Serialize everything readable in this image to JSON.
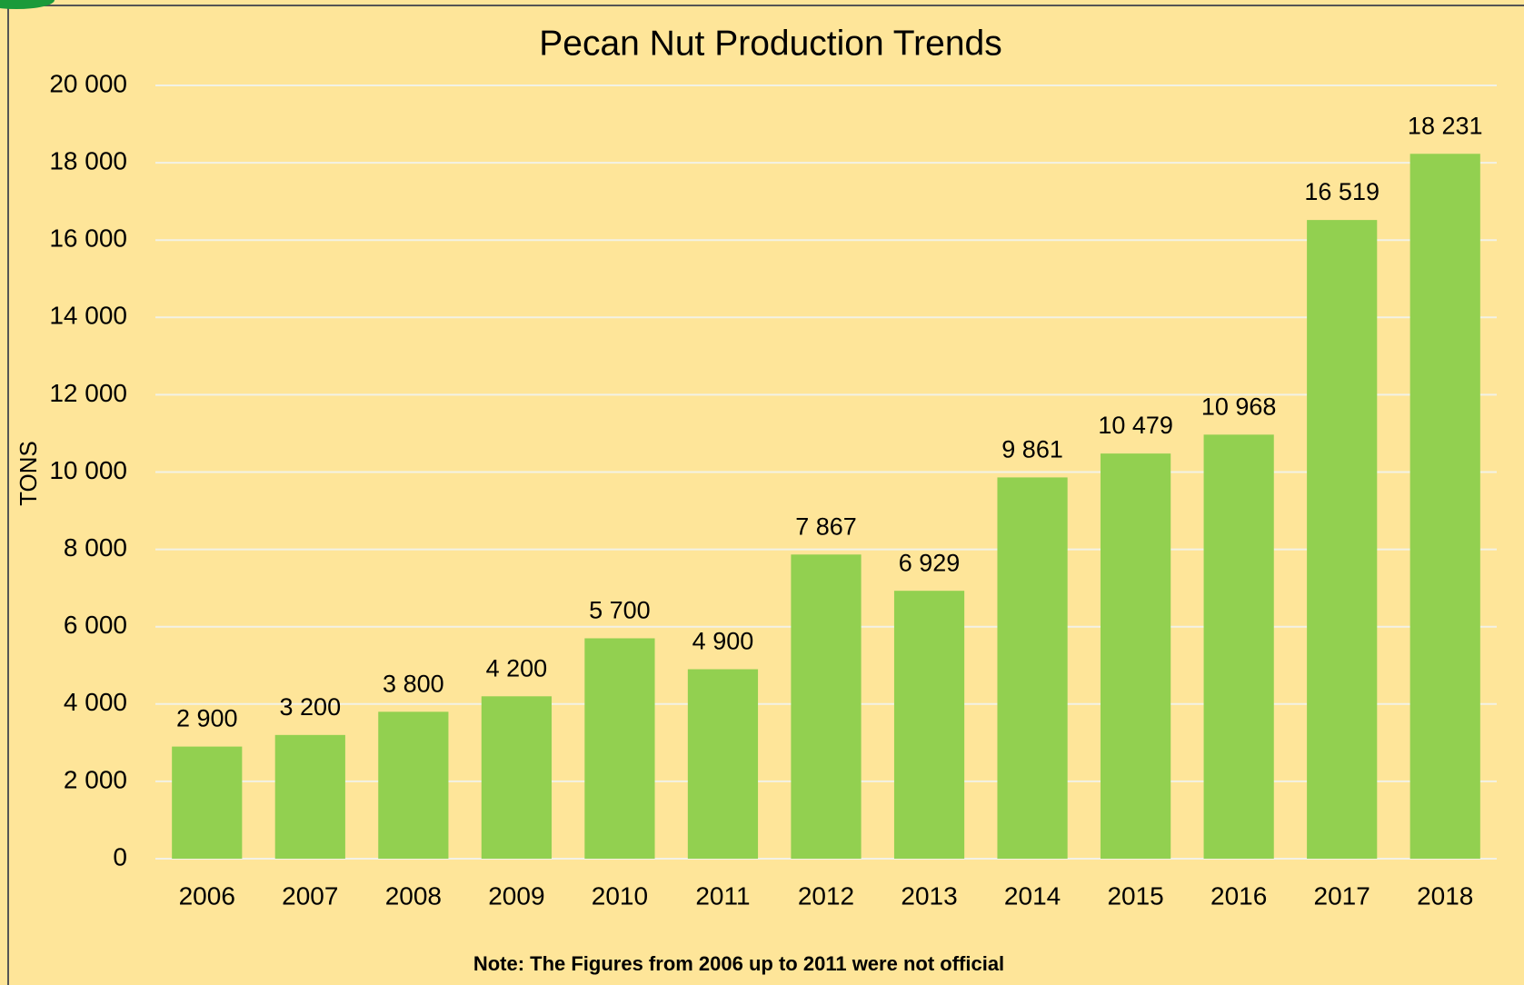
{
  "chart_data": {
    "type": "bar",
    "title": "Pecan Nut Production Trends",
    "y_label": "TONS",
    "note": "Note: The Figures from 2006 up to 2011 were not official",
    "categories": [
      "2006",
      "2007",
      "2008",
      "2009",
      "2010",
      "2011",
      "2012",
      "2013",
      "2014",
      "2015",
      "2016",
      "2017",
      "2018"
    ],
    "values": [
      2900,
      3200,
      3800,
      4200,
      5700,
      4900,
      7867,
      6929,
      9861,
      10479,
      10968,
      16519,
      18231
    ],
    "value_labels": [
      "2 900",
      "3 200",
      "3 800",
      "4 200",
      "5 700",
      "4 900",
      "7 867",
      "6 929",
      "9 861",
      "10 479",
      "10 968",
      "16 519",
      "18 231"
    ],
    "color": "#92d050",
    "ylim": [
      0,
      20000
    ],
    "yticks": [
      0,
      {
        "value": 2000,
        "label": "2 000"
      },
      {
        "value": 4000,
        "label": "4 000"
      },
      {
        "value": 6000,
        "label": "6 000"
      },
      {
        "value": 8000,
        "label": "8 000"
      },
      {
        "value": 10000,
        "label": "10 000"
      },
      {
        "value": 12000,
        "label": "12 000"
      },
      {
        "value": 14000,
        "label": "14 000"
      },
      {
        "value": 16000,
        "label": "16 000"
      },
      {
        "value": 18000,
        "label": "18 000"
      },
      {
        "value": 20000,
        "label": "20 000"
      }
    ],
    "grid": true
  }
}
